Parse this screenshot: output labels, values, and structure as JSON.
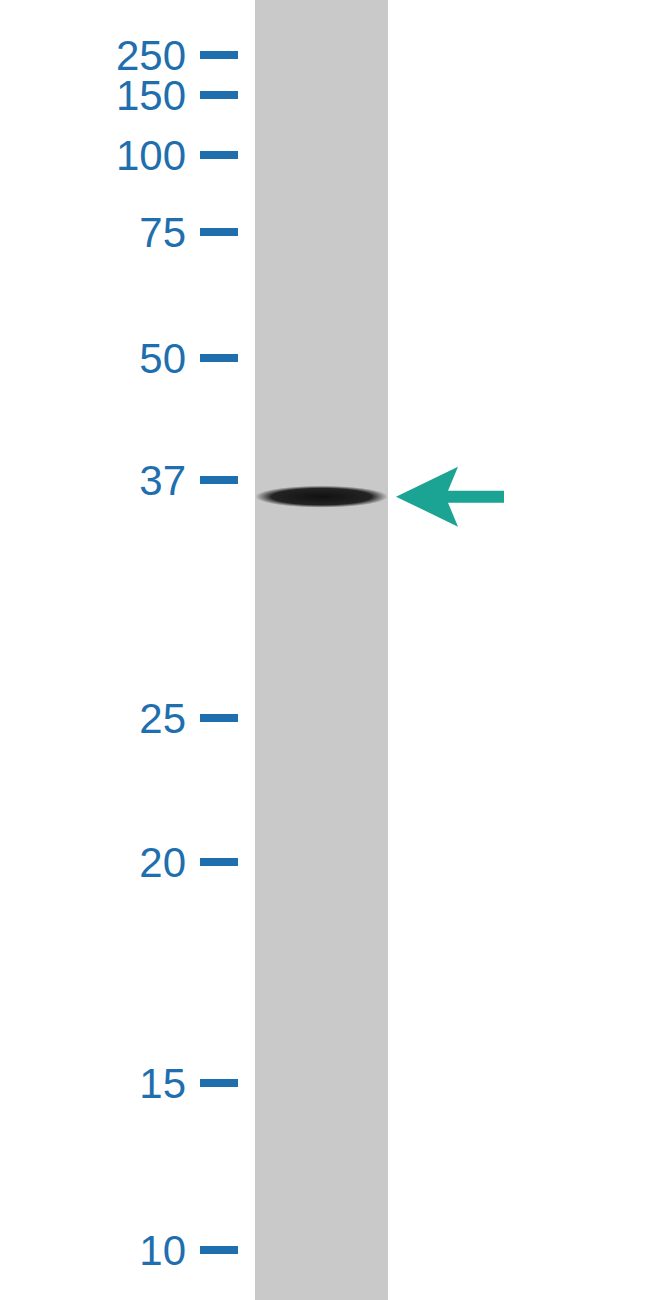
{
  "chart_data": {
    "type": "blot",
    "log": "y",
    "ylim": [
      9,
      280
    ],
    "yticks": [
      10,
      15,
      20,
      25,
      37,
      50,
      75,
      100,
      150,
      250
    ],
    "categories": [
      null
    ],
    "values": [
      36
    ],
    "color": "#111111"
  }
}
